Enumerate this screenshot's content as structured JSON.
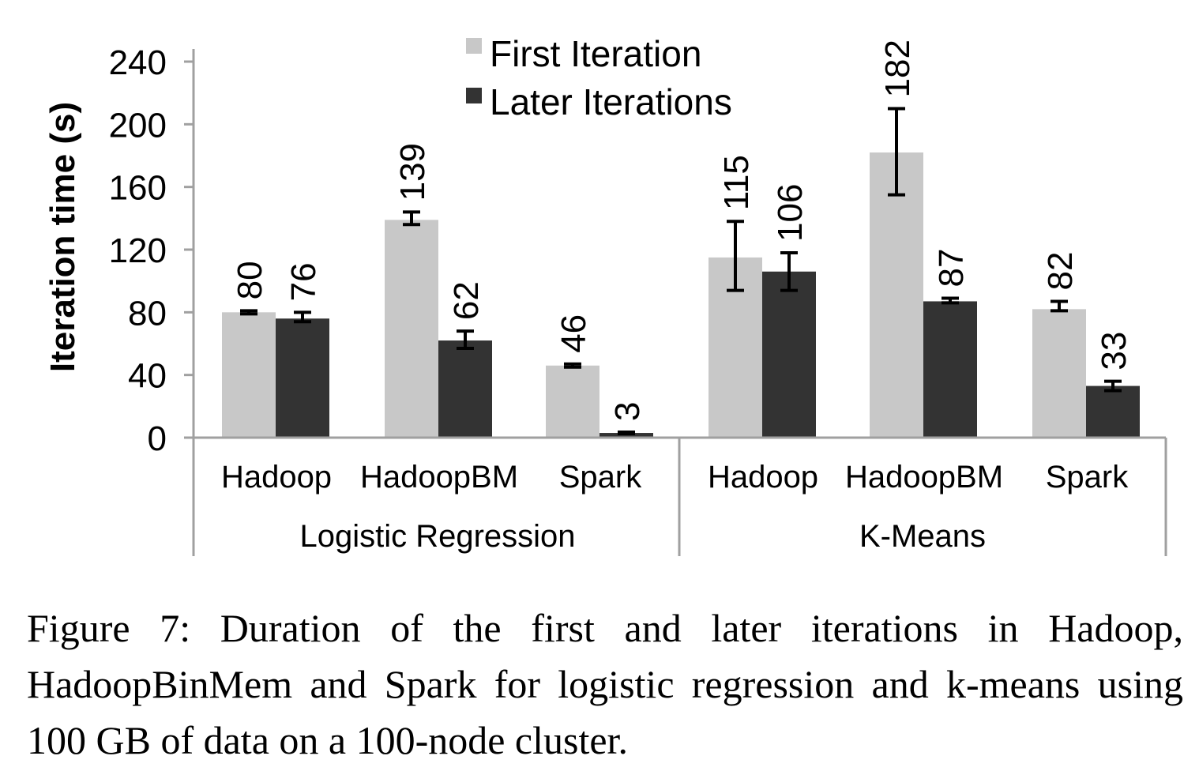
{
  "chart_data": {
    "type": "bar",
    "title": "",
    "xlabel": "",
    "ylabel": "Iteration time (s)",
    "ylim": [
      0,
      240
    ],
    "yticks": [
      0,
      40,
      80,
      120,
      160,
      200,
      240
    ],
    "grid": false,
    "legend_position": "top-center",
    "groups": [
      {
        "label": "Logistic Regression",
        "categories": [
          "Hadoop",
          "HadoopBM",
          "Spark"
        ]
      },
      {
        "label": "K-Means",
        "categories": [
          "Hadoop",
          "HadoopBM",
          "Spark"
        ]
      }
    ],
    "categories": [
      "Hadoop",
      "HadoopBM",
      "Spark",
      "Hadoop",
      "HadoopBM",
      "Spark"
    ],
    "series": [
      {
        "name": "First Iteration",
        "color": "#c8c8c8",
        "values": [
          80,
          139,
          46,
          115,
          182,
          82
        ],
        "error_low": [
          79,
          136,
          45,
          94,
          155,
          81
        ],
        "error_high": [
          81,
          144,
          47,
          138,
          210,
          87
        ]
      },
      {
        "name": "Later Iterations",
        "color": "#333333",
        "values": [
          76,
          62,
          3,
          106,
          87,
          33
        ],
        "error_low": [
          74,
          57,
          2.5,
          94,
          86,
          30
        ],
        "error_high": [
          80,
          68,
          3.5,
          118,
          89,
          36
        ]
      }
    ]
  },
  "caption": "Figure 7: Duration of the first and later iterations in Hadoop, HadoopBinMem and Spark for logistic regression and k-means using 100 GB of data on a 100-node cluster."
}
